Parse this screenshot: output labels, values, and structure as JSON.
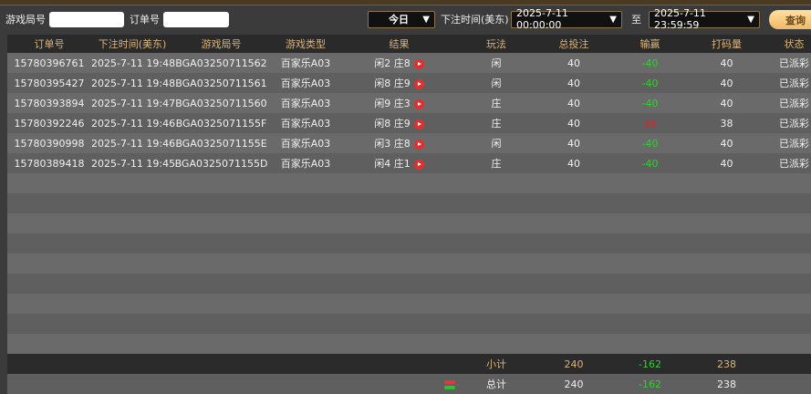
{
  "filters": {
    "round_label": "游戏局号",
    "round_value": "",
    "order_label": "订单号",
    "order_value": "",
    "period": "今日",
    "time_label": "下注时间(美东)",
    "start": "2025-7-11 00:00:00",
    "to_label": "至",
    "end": "2025-7-11 23:59:59",
    "query_label": "查询"
  },
  "columns": [
    "订单号",
    "下注时间(美东)",
    "游戏局号",
    "游戏类型",
    "结果",
    "玩法",
    "总投注",
    "输赢",
    "打码量",
    "状态"
  ],
  "rows": [
    {
      "order": "15780396761",
      "time": "2025-7-11 19:48",
      "round": "BGA03250711562",
      "game": "百家乐A03",
      "result": "闲2 庄8",
      "bet_on": "闲",
      "bet": "40",
      "win": "-40",
      "win_color": "green",
      "turnover": "40",
      "status": "已派彩"
    },
    {
      "order": "15780395427",
      "time": "2025-7-11 19:48",
      "round": "BGA03250711561",
      "game": "百家乐A03",
      "result": "闲8 庄9",
      "bet_on": "闲",
      "bet": "40",
      "win": "-40",
      "win_color": "green",
      "turnover": "40",
      "status": "已派彩"
    },
    {
      "order": "15780393894",
      "time": "2025-7-11 19:47",
      "round": "BGA03250711560",
      "game": "百家乐A03",
      "result": "闲9 庄3",
      "bet_on": "庄",
      "bet": "40",
      "win": "-40",
      "win_color": "green",
      "turnover": "40",
      "status": "已派彩"
    },
    {
      "order": "15780392246",
      "time": "2025-7-11 19:46",
      "round": "BGA0325071155F",
      "game": "百家乐A03",
      "result": "闲8 庄9",
      "bet_on": "庄",
      "bet": "40",
      "win": "38",
      "win_color": "red",
      "turnover": "38",
      "status": "已派彩"
    },
    {
      "order": "15780390998",
      "time": "2025-7-11 19:46",
      "round": "BGA0325071155E",
      "game": "百家乐A03",
      "result": "闲3 庄8",
      "bet_on": "闲",
      "bet": "40",
      "win": "-40",
      "win_color": "green",
      "turnover": "40",
      "status": "已派彩"
    },
    {
      "order": "15780389418",
      "time": "2025-7-11 19:45",
      "round": "BGA0325071155D",
      "game": "百家乐A03",
      "result": "闲4 庄1",
      "bet_on": "庄",
      "bet": "40",
      "win": "-40",
      "win_color": "green",
      "turnover": "40",
      "status": "已派彩"
    }
  ],
  "subtotal": {
    "label": "小计",
    "bet": "240",
    "win": "-162",
    "turnover": "238"
  },
  "total": {
    "label": "总计",
    "bet": "240",
    "win": "-162",
    "turnover": "238"
  },
  "colors": {
    "header_text": "#d9b57c",
    "loss": "#2ed02e",
    "win": "#d62a2a"
  }
}
